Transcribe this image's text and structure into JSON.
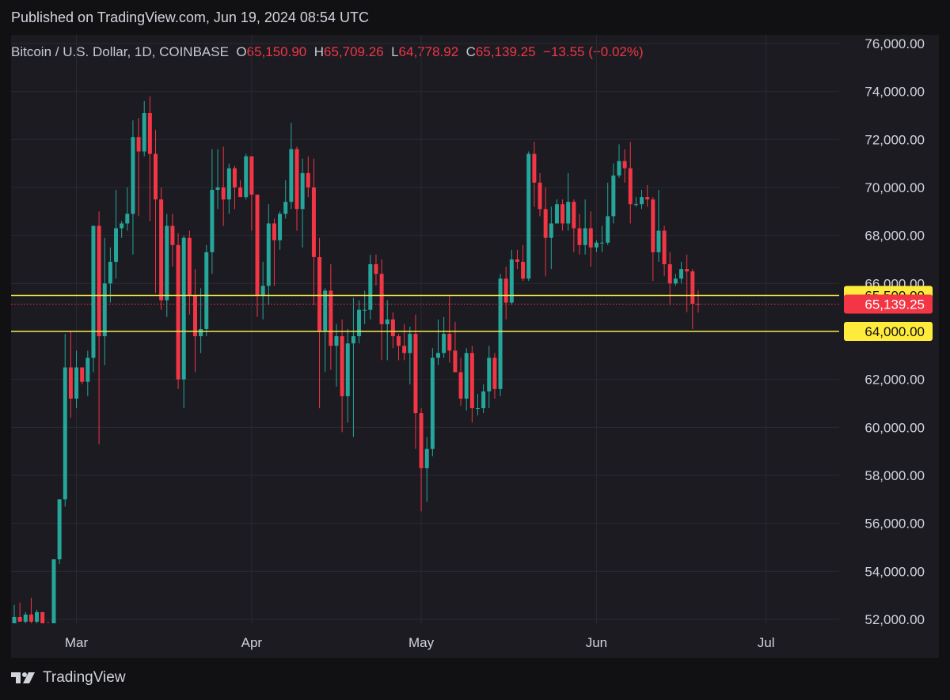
{
  "header": {
    "published": "Published on TradingView.com, Jun 19, 2024 08:54 UTC"
  },
  "legend": {
    "symbol": "Bitcoin / U.S. Dollar, 1D, COINBASE",
    "o_label": "O",
    "o_value": "65,150.90",
    "h_label": "H",
    "h_value": "65,709.26",
    "l_label": "L",
    "l_value": "64,778.92",
    "c_label": "C",
    "c_value": "65,139.25",
    "change": "−13.55 (−0.02%)"
  },
  "footer": {
    "brand": "TradingView",
    "logo_icon": "tradingview-logo-icon"
  },
  "colors": {
    "up": "#26a69a",
    "down": "#f23645",
    "level_line": "#f5e94a",
    "price_badge": "#f23645",
    "level_badge": "#ffeb3b",
    "grid": "#2a2a33",
    "axis_text": "#d1d4dc"
  },
  "chart_data": {
    "type": "candlestick",
    "ylim": [
      52000,
      76000
    ],
    "y_ticks": [
      "76,000.00",
      "74,000.00",
      "72,000.00",
      "70,000.00",
      "68,000.00",
      "66,000.00",
      "64,000.00",
      "62,000.00",
      "60,000.00",
      "58,000.00",
      "56,000.00",
      "54,000.00",
      "52,000.00"
    ],
    "y_tick_values": [
      76000,
      74000,
      72000,
      70000,
      68000,
      66000,
      64000,
      62000,
      60000,
      58000,
      56000,
      54000,
      52000
    ],
    "x_labels": [
      {
        "label": "Mar",
        "index": 11
      },
      {
        "label": "Apr",
        "index": 42
      },
      {
        "label": "May",
        "index": 72
      },
      {
        "label": "Jun",
        "index": 103
      },
      {
        "label": "Jul",
        "index": 133
      }
    ],
    "first_date": "2024-02-19",
    "candles": [
      {
        "date": "2024-02-19",
        "o": 51800,
        "h": 52600,
        "l": 51500,
        "c": 52100
      },
      {
        "date": "2024-02-20",
        "o": 52100,
        "h": 52700,
        "l": 51900,
        "c": 51900
      },
      {
        "date": "2024-02-21",
        "o": 51900,
        "h": 52300,
        "l": 51700,
        "c": 52200
      },
      {
        "date": "2024-02-22",
        "o": 52200,
        "h": 52900,
        "l": 51800,
        "c": 51900
      },
      {
        "date": "2024-02-23",
        "o": 51900,
        "h": 52400,
        "l": 51600,
        "c": 52300
      },
      {
        "date": "2024-02-24",
        "o": 52300,
        "h": 52300,
        "l": 51700,
        "c": 51800
      },
      {
        "date": "2024-02-25",
        "o": 51800,
        "h": 51900,
        "l": 51500,
        "c": 51600
      },
      {
        "date": "2024-02-26",
        "o": 51600,
        "h": 54500,
        "l": 51500,
        "c": 54500
      },
      {
        "date": "2024-02-27",
        "o": 54500,
        "h": 57000,
        "l": 54300,
        "c": 57000
      },
      {
        "date": "2024-02-28",
        "o": 57000,
        "h": 63900,
        "l": 56700,
        "c": 62500
      },
      {
        "date": "2024-02-29",
        "o": 62500,
        "h": 64000,
        "l": 60400,
        "c": 61200
      },
      {
        "date": "2024-03-01",
        "o": 61200,
        "h": 63200,
        "l": 60800,
        "c": 62500
      },
      {
        "date": "2024-03-02",
        "o": 62500,
        "h": 62400,
        "l": 61800,
        "c": 61900
      },
      {
        "date": "2024-03-03",
        "o": 61900,
        "h": 63200,
        "l": 61300,
        "c": 62900
      },
      {
        "date": "2024-03-04",
        "o": 62900,
        "h": 68400,
        "l": 62300,
        "c": 68400
      },
      {
        "date": "2024-03-05",
        "o": 68400,
        "h": 69000,
        "l": 59300,
        "c": 63800
      },
      {
        "date": "2024-03-06",
        "o": 63800,
        "h": 67900,
        "l": 62600,
        "c": 66000
      },
      {
        "date": "2024-03-07",
        "o": 66000,
        "h": 67500,
        "l": 65200,
        "c": 66900
      },
      {
        "date": "2024-03-08",
        "o": 66900,
        "h": 69900,
        "l": 66200,
        "c": 68300
      },
      {
        "date": "2024-03-09",
        "o": 68300,
        "h": 68600,
        "l": 67900,
        "c": 68500
      },
      {
        "date": "2024-03-10",
        "o": 68500,
        "h": 70000,
        "l": 68200,
        "c": 68900
      },
      {
        "date": "2024-03-11",
        "o": 68900,
        "h": 72800,
        "l": 67200,
        "c": 72100
      },
      {
        "date": "2024-03-12",
        "o": 72100,
        "h": 72900,
        "l": 68800,
        "c": 71500
      },
      {
        "date": "2024-03-13",
        "o": 71500,
        "h": 73600,
        "l": 71300,
        "c": 73100
      },
      {
        "date": "2024-03-14",
        "o": 73100,
        "h": 73800,
        "l": 68600,
        "c": 71400
      },
      {
        "date": "2024-03-15",
        "o": 71400,
        "h": 72400,
        "l": 65600,
        "c": 69500
      },
      {
        "date": "2024-03-16",
        "o": 69500,
        "h": 70000,
        "l": 64900,
        "c": 65300
      },
      {
        "date": "2024-03-17",
        "o": 65300,
        "h": 68900,
        "l": 64600,
        "c": 68400
      },
      {
        "date": "2024-03-18",
        "o": 68400,
        "h": 68900,
        "l": 66700,
        "c": 67600
      },
      {
        "date": "2024-03-19",
        "o": 67600,
        "h": 68100,
        "l": 61600,
        "c": 62000
      },
      {
        "date": "2024-03-20",
        "o": 62000,
        "h": 68000,
        "l": 60800,
        "c": 67900
      },
      {
        "date": "2024-03-21",
        "o": 67900,
        "h": 68200,
        "l": 64700,
        "c": 65500
      },
      {
        "date": "2024-03-22",
        "o": 65500,
        "h": 66600,
        "l": 62300,
        "c": 63800
      },
      {
        "date": "2024-03-23",
        "o": 63800,
        "h": 65800,
        "l": 63100,
        "c": 64100
      },
      {
        "date": "2024-03-24",
        "o": 64100,
        "h": 67600,
        "l": 63800,
        "c": 67300
      },
      {
        "date": "2024-03-25",
        "o": 67300,
        "h": 71600,
        "l": 66400,
        "c": 69900
      },
      {
        "date": "2024-03-26",
        "o": 69900,
        "h": 71600,
        "l": 69100,
        "c": 70000
      },
      {
        "date": "2024-03-27",
        "o": 70000,
        "h": 71700,
        "l": 68400,
        "c": 69500
      },
      {
        "date": "2024-03-28",
        "o": 69500,
        "h": 71000,
        "l": 68900,
        "c": 70800
      },
      {
        "date": "2024-03-29",
        "o": 70800,
        "h": 70900,
        "l": 69100,
        "c": 70000
      },
      {
        "date": "2024-03-30",
        "o": 70000,
        "h": 70300,
        "l": 69600,
        "c": 69600
      },
      {
        "date": "2024-03-31",
        "o": 69600,
        "h": 71400,
        "l": 69500,
        "c": 71300
      },
      {
        "date": "2024-04-01",
        "o": 71300,
        "h": 71300,
        "l": 68200,
        "c": 69700
      },
      {
        "date": "2024-04-02",
        "o": 69700,
        "h": 69700,
        "l": 64600,
        "c": 65500
      },
      {
        "date": "2024-04-03",
        "o": 65500,
        "h": 66900,
        "l": 64500,
        "c": 65900
      },
      {
        "date": "2024-04-04",
        "o": 65900,
        "h": 69300,
        "l": 65100,
        "c": 68500
      },
      {
        "date": "2024-04-05",
        "o": 68500,
        "h": 68700,
        "l": 65900,
        "c": 67800
      },
      {
        "date": "2024-04-06",
        "o": 67800,
        "h": 69000,
        "l": 67400,
        "c": 68900
      },
      {
        "date": "2024-04-07",
        "o": 68900,
        "h": 70300,
        "l": 68700,
        "c": 69400
      },
      {
        "date": "2024-04-08",
        "o": 69400,
        "h": 72700,
        "l": 69100,
        "c": 71600
      },
      {
        "date": "2024-04-09",
        "o": 71600,
        "h": 71700,
        "l": 68200,
        "c": 69100
      },
      {
        "date": "2024-04-10",
        "o": 69100,
        "h": 71200,
        "l": 67500,
        "c": 70600
      },
      {
        "date": "2024-04-11",
        "o": 70600,
        "h": 71300,
        "l": 69600,
        "c": 70000
      },
      {
        "date": "2024-04-12",
        "o": 70000,
        "h": 71200,
        "l": 65100,
        "c": 67100
      },
      {
        "date": "2024-04-13",
        "o": 67100,
        "h": 67900,
        "l": 60800,
        "c": 64000
      },
      {
        "date": "2024-04-14",
        "o": 64000,
        "h": 65800,
        "l": 62300,
        "c": 65700
      },
      {
        "date": "2024-04-15",
        "o": 65700,
        "h": 66800,
        "l": 62400,
        "c": 63400
      },
      {
        "date": "2024-04-16",
        "o": 63400,
        "h": 64300,
        "l": 61700,
        "c": 63800
      },
      {
        "date": "2024-04-17",
        "o": 63800,
        "h": 64500,
        "l": 59800,
        "c": 61300
      },
      {
        "date": "2024-04-18",
        "o": 61300,
        "h": 64100,
        "l": 60200,
        "c": 63500
      },
      {
        "date": "2024-04-19",
        "o": 63500,
        "h": 65400,
        "l": 59600,
        "c": 63800
      },
      {
        "date": "2024-04-20",
        "o": 63800,
        "h": 65300,
        "l": 63500,
        "c": 64900
      },
      {
        "date": "2024-04-21",
        "o": 64900,
        "h": 65700,
        "l": 64300,
        "c": 64900
      },
      {
        "date": "2024-04-22",
        "o": 64900,
        "h": 67200,
        "l": 64500,
        "c": 66800
      },
      {
        "date": "2024-04-23",
        "o": 66800,
        "h": 67200,
        "l": 65900,
        "c": 66400
      },
      {
        "date": "2024-04-24",
        "o": 66400,
        "h": 67000,
        "l": 62800,
        "c": 64300
      },
      {
        "date": "2024-04-25",
        "o": 64300,
        "h": 65300,
        "l": 62800,
        "c": 64500
      },
      {
        "date": "2024-04-26",
        "o": 64500,
        "h": 64800,
        "l": 63300,
        "c": 63800
      },
      {
        "date": "2024-04-27",
        "o": 63800,
        "h": 63900,
        "l": 62800,
        "c": 63400
      },
      {
        "date": "2024-04-28",
        "o": 63400,
        "h": 64300,
        "l": 62800,
        "c": 63100
      },
      {
        "date": "2024-04-29",
        "o": 63100,
        "h": 64200,
        "l": 61800,
        "c": 63900
      },
      {
        "date": "2024-04-30",
        "o": 63900,
        "h": 64700,
        "l": 59100,
        "c": 60600
      },
      {
        "date": "2024-05-01",
        "o": 60600,
        "h": 60800,
        "l": 56500,
        "c": 58300
      },
      {
        "date": "2024-05-02",
        "o": 58300,
        "h": 59600,
        "l": 56900,
        "c": 59100
      },
      {
        "date": "2024-05-03",
        "o": 59100,
        "h": 63300,
        "l": 58800,
        "c": 62900
      },
      {
        "date": "2024-05-04",
        "o": 62900,
        "h": 64500,
        "l": 62600,
        "c": 63100
      },
      {
        "date": "2024-05-05",
        "o": 63100,
        "h": 64600,
        "l": 62900,
        "c": 63900
      },
      {
        "date": "2024-05-06",
        "o": 63900,
        "h": 65500,
        "l": 62700,
        "c": 63200
      },
      {
        "date": "2024-05-07",
        "o": 63200,
        "h": 64400,
        "l": 62300,
        "c": 62300
      },
      {
        "date": "2024-05-08",
        "o": 62300,
        "h": 62900,
        "l": 60900,
        "c": 61200
      },
      {
        "date": "2024-05-09",
        "o": 61200,
        "h": 63300,
        "l": 60700,
        "c": 63100
      },
      {
        "date": "2024-05-10",
        "o": 63100,
        "h": 63400,
        "l": 60200,
        "c": 60800
      },
      {
        "date": "2024-05-11",
        "o": 60800,
        "h": 61400,
        "l": 60500,
        "c": 60800
      },
      {
        "date": "2024-05-12",
        "o": 60800,
        "h": 61800,
        "l": 60600,
        "c": 61500
      },
      {
        "date": "2024-05-13",
        "o": 61500,
        "h": 63400,
        "l": 60800,
        "c": 62900
      },
      {
        "date": "2024-05-14",
        "o": 62900,
        "h": 63100,
        "l": 61200,
        "c": 61600
      },
      {
        "date": "2024-05-15",
        "o": 61600,
        "h": 66400,
        "l": 61300,
        "c": 66200
      },
      {
        "date": "2024-05-16",
        "o": 66200,
        "h": 66700,
        "l": 64500,
        "c": 65200
      },
      {
        "date": "2024-05-17",
        "o": 65200,
        "h": 67400,
        "l": 65100,
        "c": 67000
      },
      {
        "date": "2024-05-18",
        "o": 67000,
        "h": 67400,
        "l": 66600,
        "c": 66900
      },
      {
        "date": "2024-05-19",
        "o": 66900,
        "h": 67600,
        "l": 66100,
        "c": 66200
      },
      {
        "date": "2024-05-20",
        "o": 66200,
        "h": 71500,
        "l": 66100,
        "c": 71400
      },
      {
        "date": "2024-05-21",
        "o": 71400,
        "h": 71900,
        "l": 69200,
        "c": 70200
      },
      {
        "date": "2024-05-22",
        "o": 70200,
        "h": 70600,
        "l": 68800,
        "c": 69100
      },
      {
        "date": "2024-05-23",
        "o": 69100,
        "h": 70000,
        "l": 66300,
        "c": 67900
      },
      {
        "date": "2024-05-24",
        "o": 67900,
        "h": 69200,
        "l": 66600,
        "c": 68500
      },
      {
        "date": "2024-05-25",
        "o": 68500,
        "h": 69500,
        "l": 68500,
        "c": 69300
      },
      {
        "date": "2024-05-26",
        "o": 69300,
        "h": 69500,
        "l": 68200,
        "c": 68500
      },
      {
        "date": "2024-05-27",
        "o": 68500,
        "h": 70600,
        "l": 68200,
        "c": 69400
      },
      {
        "date": "2024-05-28",
        "o": 69400,
        "h": 69500,
        "l": 67300,
        "c": 68300
      },
      {
        "date": "2024-05-29",
        "o": 68300,
        "h": 68900,
        "l": 67200,
        "c": 67600
      },
      {
        "date": "2024-05-30",
        "o": 67600,
        "h": 69500,
        "l": 67200,
        "c": 68300
      },
      {
        "date": "2024-05-31",
        "o": 68300,
        "h": 69000,
        "l": 66700,
        "c": 67500
      },
      {
        "date": "2024-06-01",
        "o": 67500,
        "h": 67800,
        "l": 67300,
        "c": 67700
      },
      {
        "date": "2024-06-02",
        "o": 67700,
        "h": 68400,
        "l": 67300,
        "c": 67700
      },
      {
        "date": "2024-06-03",
        "o": 67700,
        "h": 70200,
        "l": 67600,
        "c": 68800
      },
      {
        "date": "2024-06-04",
        "o": 68800,
        "h": 71000,
        "l": 68500,
        "c": 70500
      },
      {
        "date": "2024-06-05",
        "o": 70500,
        "h": 71800,
        "l": 70400,
        "c": 71100
      },
      {
        "date": "2024-06-06",
        "o": 71100,
        "h": 71600,
        "l": 70200,
        "c": 70800
      },
      {
        "date": "2024-06-07",
        "o": 70800,
        "h": 71900,
        "l": 68500,
        "c": 69300
      },
      {
        "date": "2024-06-08",
        "o": 69300,
        "h": 69600,
        "l": 69200,
        "c": 69300
      },
      {
        "date": "2024-06-09",
        "o": 69300,
        "h": 69900,
        "l": 69100,
        "c": 69600
      },
      {
        "date": "2024-06-10",
        "o": 69600,
        "h": 70100,
        "l": 69200,
        "c": 69500
      },
      {
        "date": "2024-06-11",
        "o": 69500,
        "h": 69600,
        "l": 66100,
        "c": 67300
      },
      {
        "date": "2024-06-12",
        "o": 67300,
        "h": 69900,
        "l": 66900,
        "c": 68200
      },
      {
        "date": "2024-06-13",
        "o": 68200,
        "h": 68400,
        "l": 66300,
        "c": 66800
      },
      {
        "date": "2024-06-14",
        "o": 66800,
        "h": 67300,
        "l": 65100,
        "c": 66000
      },
      {
        "date": "2024-06-15",
        "o": 66000,
        "h": 66400,
        "l": 65900,
        "c": 66200
      },
      {
        "date": "2024-06-16",
        "o": 66200,
        "h": 66900,
        "l": 66000,
        "c": 66600
      },
      {
        "date": "2024-06-17",
        "o": 66600,
        "h": 67200,
        "l": 64800,
        "c": 66500
      },
      {
        "date": "2024-06-18",
        "o": 66500,
        "h": 66600,
        "l": 64100,
        "c": 65150
      },
      {
        "date": "2024-06-19",
        "o": 65150.9,
        "h": 65709.26,
        "l": 64778.92,
        "c": 65139.25
      }
    ],
    "levels": [
      {
        "value": 65500,
        "label": "65,500.00"
      },
      {
        "value": 64000,
        "label": "64,000.00"
      }
    ],
    "last_price": {
      "value": 65139.25,
      "label": "65,139.25"
    },
    "grid": true
  }
}
